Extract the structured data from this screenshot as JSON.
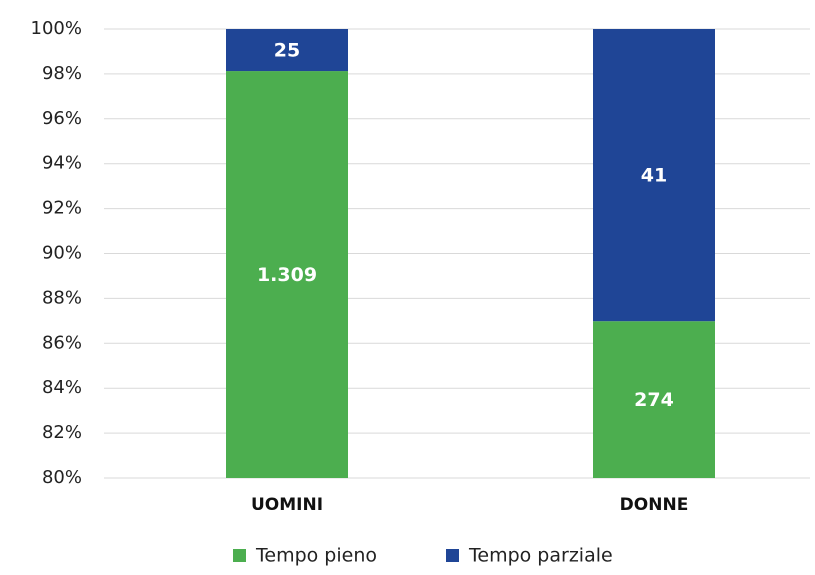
{
  "chart_data": {
    "type": "bar",
    "stacking": "percent",
    "categories": [
      "UOMINI",
      "DONNE"
    ],
    "series": [
      {
        "name": "Tempo pieno",
        "color": "#4cae4f",
        "values": [
          1309,
          274
        ],
        "value_labels": [
          "1.309",
          "274"
        ]
      },
      {
        "name": "Tempo parziale",
        "color": "#1f4596",
        "values": [
          25,
          41
        ]
      }
    ],
    "ylim": [
      80,
      100
    ],
    "yticks": [
      {
        "value": 80,
        "label": "80%"
      },
      {
        "value": 82,
        "label": "82%"
      },
      {
        "value": 84,
        "label": "84%"
      },
      {
        "value": 86,
        "label": "86%"
      },
      {
        "value": 88,
        "label": "88%"
      },
      {
        "value": 90,
        "label": "90%"
      },
      {
        "value": 92,
        "label": "92%"
      },
      {
        "value": 94,
        "label": "94%"
      },
      {
        "value": 96,
        "label": "96%"
      },
      {
        "value": 98,
        "label": "98%"
      },
      {
        "value": 100,
        "label": "100%"
      }
    ],
    "grid": true,
    "legend": "bottom"
  }
}
